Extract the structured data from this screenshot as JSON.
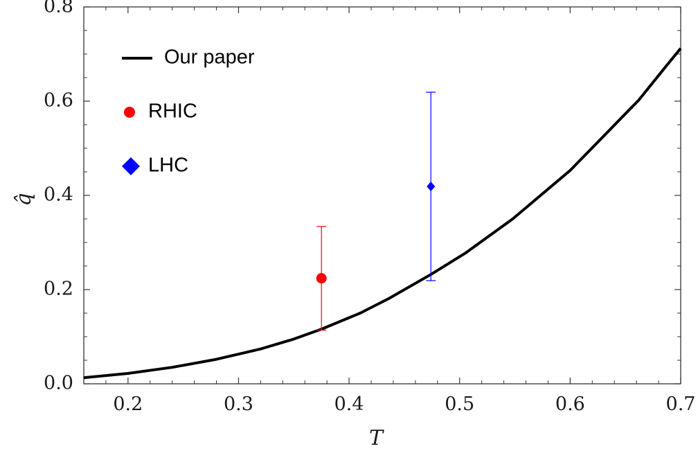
{
  "chart_data": {
    "type": "line",
    "xlabel": "T",
    "ylabel": "q̂",
    "xlim": [
      0.16,
      0.7
    ],
    "ylim": [
      0.0,
      0.8
    ],
    "x_ticks": [
      0.2,
      0.3,
      0.4,
      0.5,
      0.6,
      0.7
    ],
    "x_tick_labels": [
      "0.2",
      "0.3",
      "0.4",
      "0.5",
      "0.6",
      "0.7"
    ],
    "y_ticks": [
      0.0,
      0.2,
      0.4,
      0.6,
      0.8
    ],
    "y_tick_labels": [
      "0.0",
      "0.2",
      "0.4",
      "0.6",
      "0.8"
    ],
    "grid": false,
    "legend_position": "top-left",
    "series": [
      {
        "name": "Our paper",
        "kind": "line",
        "color": "#000000",
        "x": [
          0.16,
          0.2,
          0.24,
          0.28,
          0.32,
          0.35,
          0.375,
          0.41,
          0.436,
          0.474,
          0.505,
          0.548,
          0.6,
          0.662,
          0.686,
          0.7
        ],
        "y": [
          0.013,
          0.022,
          0.035,
          0.052,
          0.074,
          0.095,
          0.116,
          0.15,
          0.181,
          0.232,
          0.277,
          0.35,
          0.453,
          0.602,
          0.672,
          0.712
        ]
      },
      {
        "name": "RHIC",
        "kind": "point",
        "marker": "circle",
        "color": "#ff0000",
        "x": [
          0.375
        ],
        "y": [
          0.224
        ],
        "yerr_low": [
          0.114
        ],
        "yerr_high": [
          0.334
        ]
      },
      {
        "name": "LHC",
        "kind": "point",
        "marker": "diamond",
        "color": "#0000ff",
        "x": [
          0.474
        ],
        "y": [
          0.419
        ],
        "yerr_low": [
          0.219
        ],
        "yerr_high": [
          0.619
        ]
      }
    ]
  }
}
